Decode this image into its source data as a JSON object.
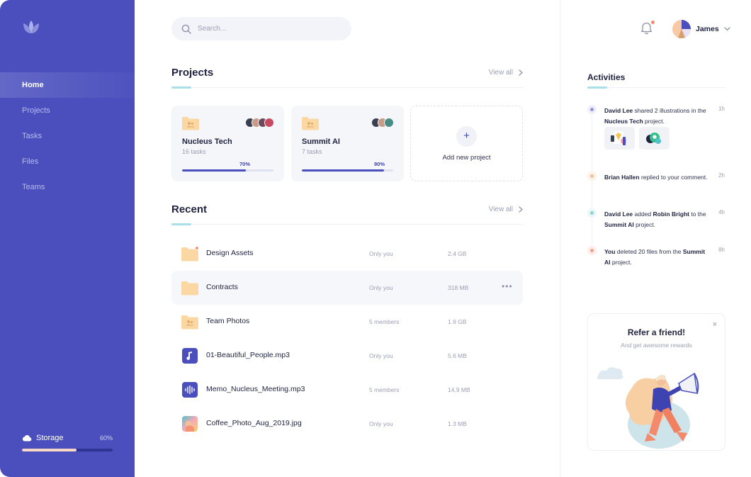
{
  "sidebar": {
    "nav": [
      "Home",
      "Projects",
      "Tasks",
      "Files",
      "Teams"
    ],
    "storage": {
      "label": "Storage",
      "percent_label": "60%",
      "fraction": 0.6
    }
  },
  "search": {
    "placeholder": "Search..."
  },
  "projects": {
    "title": "Projects",
    "view_all": "View all",
    "cards": [
      {
        "name": "Nucleus Tech",
        "tasks": "16 tasks",
        "percent_label": "70%",
        "fraction": 0.7
      },
      {
        "name": "Summit AI",
        "tasks": "7 tasks",
        "percent_label": "90%",
        "fraction": 0.9
      }
    ],
    "add_label": "Add new project",
    "add_symbol": "+"
  },
  "recent": {
    "title": "Recent",
    "view_all": "View all",
    "files": [
      {
        "name": "Design Assets",
        "share": "Only you",
        "size": "2.4 GB",
        "icon": "folder-icon"
      },
      {
        "name": "Contracts",
        "share": "Only you",
        "size": "318 MB",
        "icon": "folder-icon",
        "more": "•••"
      },
      {
        "name": "Team Photos",
        "share": "5 members",
        "size": "1.9 GB",
        "icon": "shared-folder-icon"
      },
      {
        "name": "01-Beautiful_People.mp3",
        "share": "Only you",
        "size": "5.6 MB",
        "icon": "music-file-icon"
      },
      {
        "name": "Memo_Nucleus_Meeting.mp3",
        "share": "5 members",
        "size": "14.9 MB",
        "icon": "audio-wave-icon"
      },
      {
        "name": "Coffee_Photo_Aug_2019.jpg",
        "share": "Only you",
        "size": "1.3 MB",
        "icon": "image-thumbnail-icon"
      }
    ]
  },
  "header": {
    "user_name": "James"
  },
  "activities": {
    "title": "Activities",
    "items": [
      {
        "time": "1h",
        "color": "#8f93e0"
      },
      {
        "time": "2h",
        "color": "#f4c09a"
      },
      {
        "time": "4h",
        "color": "#8ed3d6"
      },
      {
        "time": "8h",
        "color": "#f4a08a"
      }
    ]
  },
  "refer": {
    "title": "Refer a friend!",
    "subtitle": "And get awesome rewards",
    "close": "×"
  },
  "colors": {
    "sidebar": "#4a4fbd",
    "accent": "#3d43b0",
    "folder": "#fbd8a3",
    "notification": "#f28a6b"
  }
}
